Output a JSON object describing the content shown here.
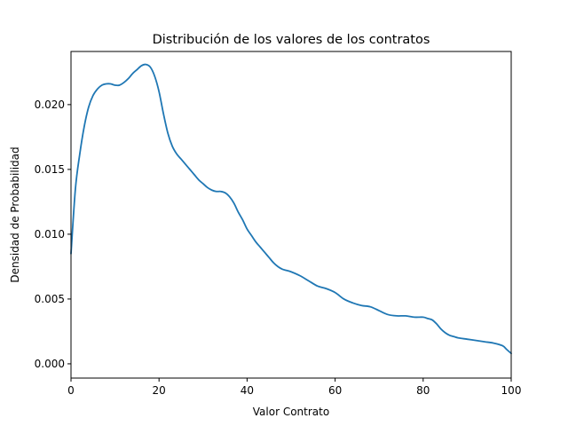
{
  "chart_data": {
    "type": "line",
    "title": "Distribución de los valores de los contratos",
    "xlabel": "Valor Contrato",
    "ylabel": "Densidad de Probabilidad",
    "xlim": [
      0,
      100
    ],
    "ylim": [
      -0.0011,
      0.0241
    ],
    "xticks": [
      0,
      20,
      40,
      60,
      80,
      100
    ],
    "xtick_labels": [
      "0",
      "20",
      "40",
      "60",
      "80",
      "100"
    ],
    "yticks": [
      0.0,
      0.005,
      0.01,
      0.015,
      0.02
    ],
    "ytick_labels": [
      "0.000",
      "0.005",
      "0.010",
      "0.015",
      "0.020"
    ],
    "grid": false,
    "legend": "none",
    "line_color": "#1f77b4",
    "series": [
      {
        "x": [
          0,
          1,
          2,
          3,
          4,
          5,
          6,
          7,
          8,
          9,
          10,
          11,
          12,
          13,
          14,
          15,
          16,
          17,
          18,
          19,
          20,
          21,
          22,
          23,
          24,
          25,
          26,
          27,
          28,
          29,
          30,
          31,
          32,
          33,
          34,
          35,
          36,
          37,
          38,
          39,
          40,
          41,
          42,
          43,
          44,
          45,
          46,
          47,
          48,
          49,
          50,
          52,
          54,
          56,
          58,
          60,
          62,
          64,
          66,
          68,
          70,
          72,
          74,
          76,
          78,
          80,
          81,
          82,
          83,
          84,
          85,
          86,
          87,
          88,
          90,
          92,
          94,
          96,
          98,
          99,
          100
        ],
        "y": [
          0.0085,
          0.0135,
          0.0162,
          0.0183,
          0.0198,
          0.0207,
          0.0212,
          0.0215,
          0.0216,
          0.0216,
          0.0215,
          0.0215,
          0.0217,
          0.022,
          0.0224,
          0.0227,
          0.023,
          0.0231,
          0.0229,
          0.0222,
          0.021,
          0.0193,
          0.0178,
          0.0168,
          0.0162,
          0.0158,
          0.0154,
          0.015,
          0.0146,
          0.0142,
          0.0139,
          0.0136,
          0.0134,
          0.0133,
          0.0133,
          0.0132,
          0.0129,
          0.0124,
          0.0117,
          0.0111,
          0.0104,
          0.0099,
          0.0094,
          0.009,
          0.0086,
          0.0082,
          0.0078,
          0.0075,
          0.0073,
          0.0072,
          0.0071,
          0.0068,
          0.0064,
          0.006,
          0.0058,
          0.0055,
          0.005,
          0.0047,
          0.0045,
          0.0044,
          0.0041,
          0.0038,
          0.0037,
          0.0037,
          0.0036,
          0.0036,
          0.0035,
          0.0034,
          0.0031,
          0.0027,
          0.0024,
          0.0022,
          0.0021,
          0.002,
          0.0019,
          0.0018,
          0.0017,
          0.0016,
          0.0014,
          0.0011,
          0.0008
        ]
      }
    ]
  }
}
